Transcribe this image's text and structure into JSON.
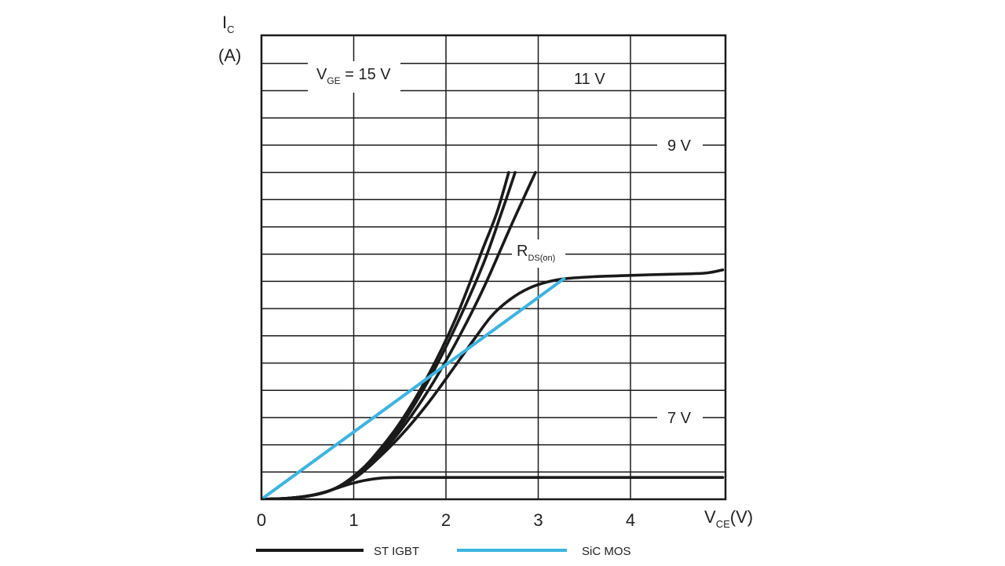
{
  "chart_data": {
    "type": "line",
    "title": "",
    "ylabel_main": "I",
    "ylabel_sub": "C",
    "ylabel_unit": "(A)",
    "xlabel_main": "V",
    "xlabel_sub": "CE",
    "xlabel_unit": "(V)",
    "xlim": [
      0,
      5
    ],
    "x_ticks": [
      "0",
      "1",
      "2",
      "3",
      "4"
    ],
    "grid": true,
    "annotations": {
      "vge15": {
        "main": "V",
        "sub": "GE",
        "rest": " = 15 V"
      },
      "v11": "11 V",
      "v9": "9 V",
      "v7": "7 V",
      "rds": {
        "main": "R",
        "sub": "DS(on)"
      }
    },
    "legend": {
      "placement": "bottom",
      "igbt": "ST IGBT",
      "sic": "SiC MOS"
    },
    "colors": {
      "igbt": "#1a1a1a",
      "sic": "#3cb4e0",
      "grid": "#1a1a1a"
    },
    "series": [
      {
        "group": "igbt",
        "points": [
          [
            0,
            0
          ],
          [
            0.3,
            0.04
          ],
          [
            0.6,
            0.18
          ],
          [
            0.8,
            0.4
          ],
          [
            1.0,
            0.85
          ],
          [
            1.2,
            1.5
          ],
          [
            1.5,
            2.8
          ],
          [
            1.8,
            4.5
          ],
          [
            2.1,
            6.6
          ],
          [
            2.4,
            9.2
          ],
          [
            2.55,
            10.5
          ],
          [
            2.68,
            12.0
          ]
        ]
      },
      {
        "group": "igbt",
        "points": [
          [
            0,
            0
          ],
          [
            0.3,
            0.04
          ],
          [
            0.6,
            0.18
          ],
          [
            0.8,
            0.4
          ],
          [
            1.0,
            0.82
          ],
          [
            1.2,
            1.42
          ],
          [
            1.5,
            2.65
          ],
          [
            1.8,
            4.3
          ],
          [
            2.1,
            6.3
          ],
          [
            2.4,
            8.6
          ],
          [
            2.6,
            10.5
          ],
          [
            2.75,
            12.0
          ]
        ]
      },
      {
        "group": "igbt",
        "points": [
          [
            0,
            0
          ],
          [
            0.3,
            0.04
          ],
          [
            0.6,
            0.18
          ],
          [
            0.8,
            0.4
          ],
          [
            1.0,
            0.78
          ],
          [
            1.2,
            1.35
          ],
          [
            1.5,
            2.5
          ],
          [
            1.8,
            3.95
          ],
          [
            2.1,
            5.7
          ],
          [
            2.4,
            7.7
          ],
          [
            2.7,
            10.0
          ],
          [
            2.97,
            12.0
          ]
        ]
      },
      {
        "group": "igbt",
        "points": [
          [
            0,
            0
          ],
          [
            0.3,
            0.04
          ],
          [
            0.6,
            0.18
          ],
          [
            0.8,
            0.4
          ],
          [
            1.0,
            0.75
          ],
          [
            1.2,
            1.3
          ],
          [
            1.5,
            2.3
          ],
          [
            1.8,
            3.5
          ],
          [
            2.1,
            4.9
          ],
          [
            2.3,
            5.85
          ],
          [
            2.5,
            6.75
          ],
          [
            2.7,
            7.35
          ],
          [
            2.9,
            7.75
          ],
          [
            3.1,
            7.98
          ],
          [
            3.3,
            8.1
          ],
          [
            3.6,
            8.17
          ],
          [
            4.0,
            8.22
          ],
          [
            4.4,
            8.26
          ],
          [
            4.8,
            8.3
          ],
          [
            5.0,
            8.42
          ]
        ]
      },
      {
        "group": "igbt",
        "points": [
          [
            0,
            0
          ],
          [
            0.3,
            0.04
          ],
          [
            0.5,
            0.12
          ],
          [
            0.7,
            0.28
          ],
          [
            0.9,
            0.5
          ],
          [
            1.1,
            0.68
          ],
          [
            1.3,
            0.78
          ],
          [
            1.5,
            0.8
          ],
          [
            2.0,
            0.8
          ],
          [
            3.0,
            0.8
          ],
          [
            4.0,
            0.8
          ],
          [
            5.0,
            0.8
          ]
        ]
      },
      {
        "group": "sic",
        "points": [
          [
            0,
            0
          ],
          [
            3.28,
            8.1
          ]
        ]
      }
    ]
  }
}
